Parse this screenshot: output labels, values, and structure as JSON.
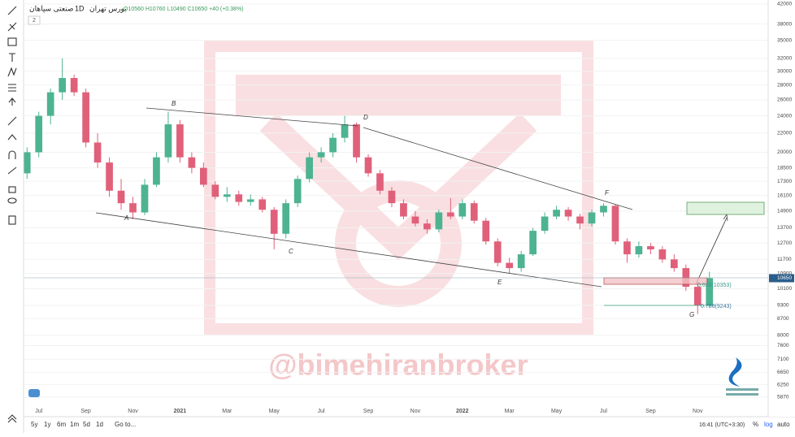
{
  "header": {
    "symbol": "صنعتی سپاهان",
    "interval": "1D",
    "exchange": "بورس تهران",
    "ohlc": "O10560 H10760 L10490 C10650 +40 (+0.38%)",
    "collapse": "2"
  },
  "chart_data": {
    "type": "candlestick",
    "categories": [
      null,
      "Jul",
      null,
      null,
      null,
      "Sep",
      null,
      null,
      null,
      "Nov",
      null,
      null,
      null,
      "2021",
      null,
      null,
      null,
      "Mar",
      null,
      null,
      null,
      "May",
      null,
      null,
      null,
      "Jul",
      null,
      null,
      null,
      "Sep",
      null,
      null,
      null,
      "Nov",
      null,
      null,
      null,
      "2022",
      null,
      null,
      null,
      "Mar",
      null,
      null,
      null,
      "May",
      null,
      null,
      null,
      "Jul",
      null,
      null,
      null,
      "Sep",
      null,
      null,
      null,
      "Nov",
      null
    ],
    "open": [
      18000,
      20000,
      24000,
      27000,
      29000,
      27000,
      21000,
      19000,
      16500,
      15500,
      14800,
      17000,
      19500,
      23000,
      19500,
      18500,
      17000,
      16000,
      16200,
      15600,
      15800,
      15000,
      13300,
      15500,
      17500,
      19500,
      20000,
      21500,
      23000,
      19500,
      18000,
      16500,
      15500,
      14500,
      14000,
      13600,
      14800,
      14500,
      15500,
      14200,
      12800,
      11500,
      11200,
      12000,
      13500,
      14500,
      15000,
      14500,
      14000,
      14800,
      15300,
      12800,
      12000,
      12500,
      12300,
      11700,
      11200,
      10200,
      9300
    ],
    "high": [
      20500,
      24500,
      27500,
      32000,
      29500,
      27500,
      22000,
      19500,
      17500,
      16000,
      17500,
      20000,
      24500,
      23500,
      20000,
      19000,
      17300,
      16800,
      16500,
      16200,
      16000,
      15200,
      15800,
      17800,
      20000,
      20500,
      22000,
      24000,
      23200,
      19800,
      18300,
      16800,
      15800,
      14900,
      14300,
      15000,
      15900,
      15800,
      15700,
      14400,
      13000,
      11800,
      12200,
      13700,
      14800,
      15300,
      15200,
      14700,
      15000,
      15500,
      15400,
      13000,
      12800,
      12700,
      12500,
      12000,
      11400,
      10600,
      11000
    ],
    "low": [
      17500,
      19500,
      23000,
      26000,
      26500,
      20500,
      18500,
      16000,
      15000,
      14300,
      14600,
      16800,
      19000,
      19000,
      18000,
      16800,
      15800,
      15600,
      15300,
      15300,
      14800,
      12300,
      13000,
      15200,
      17200,
      19000,
      19500,
      21000,
      19000,
      17700,
      16200,
      15200,
      14300,
      13800,
      13300,
      13400,
      14300,
      14300,
      14000,
      12600,
      11300,
      10900,
      11000,
      11900,
      13300,
      14300,
      14200,
      13600,
      13800,
      14500,
      12600,
      11500,
      11800,
      12000,
      11500,
      11000,
      10000,
      8900,
      9200
    ],
    "close": [
      20000,
      24000,
      27000,
      29000,
      27000,
      21000,
      19000,
      16500,
      15500,
      14800,
      17000,
      19500,
      23000,
      19500,
      18500,
      17000,
      16000,
      16200,
      15600,
      15800,
      15000,
      13300,
      15500,
      17500,
      19500,
      20000,
      21500,
      23000,
      19500,
      18000,
      16500,
      15500,
      14500,
      14000,
      13600,
      14800,
      14500,
      15500,
      14200,
      12800,
      11500,
      11200,
      12000,
      13500,
      14500,
      15000,
      14500,
      14000,
      14800,
      15300,
      12800,
      12000,
      12500,
      12300,
      11700,
      11200,
      10200,
      9300,
      10650
    ],
    "up_color": "#4db391",
    "down_color": "#e0607a",
    "ylim": [
      5390,
      42850
    ],
    "log_scale": true,
    "grid": true,
    "yticks": [
      42000,
      38000,
      35000,
      32000,
      30000,
      28000,
      26000,
      24000,
      22000,
      20000,
      18500,
      17300,
      16100,
      14900,
      13700,
      12700,
      11700,
      10900,
      10100,
      9300,
      8700,
      8000,
      7600,
      7100,
      6650,
      6250,
      5870
    ],
    "last_price": 10650,
    "annotations": [
      "A",
      "B",
      "C",
      "D",
      "E",
      "F",
      "G",
      "0.618(10353)",
      "0.786(9243)"
    ],
    "watermark": "@bimehiranbroker"
  },
  "bottom_bar": {
    "ranges": [
      "5y",
      "1y",
      "6m",
      "1m",
      "5d",
      "1d"
    ],
    "goto": "Go to...",
    "time": "16:41 (UTC+3:30)",
    "percent": "%",
    "log": "log",
    "auto": "auto"
  }
}
